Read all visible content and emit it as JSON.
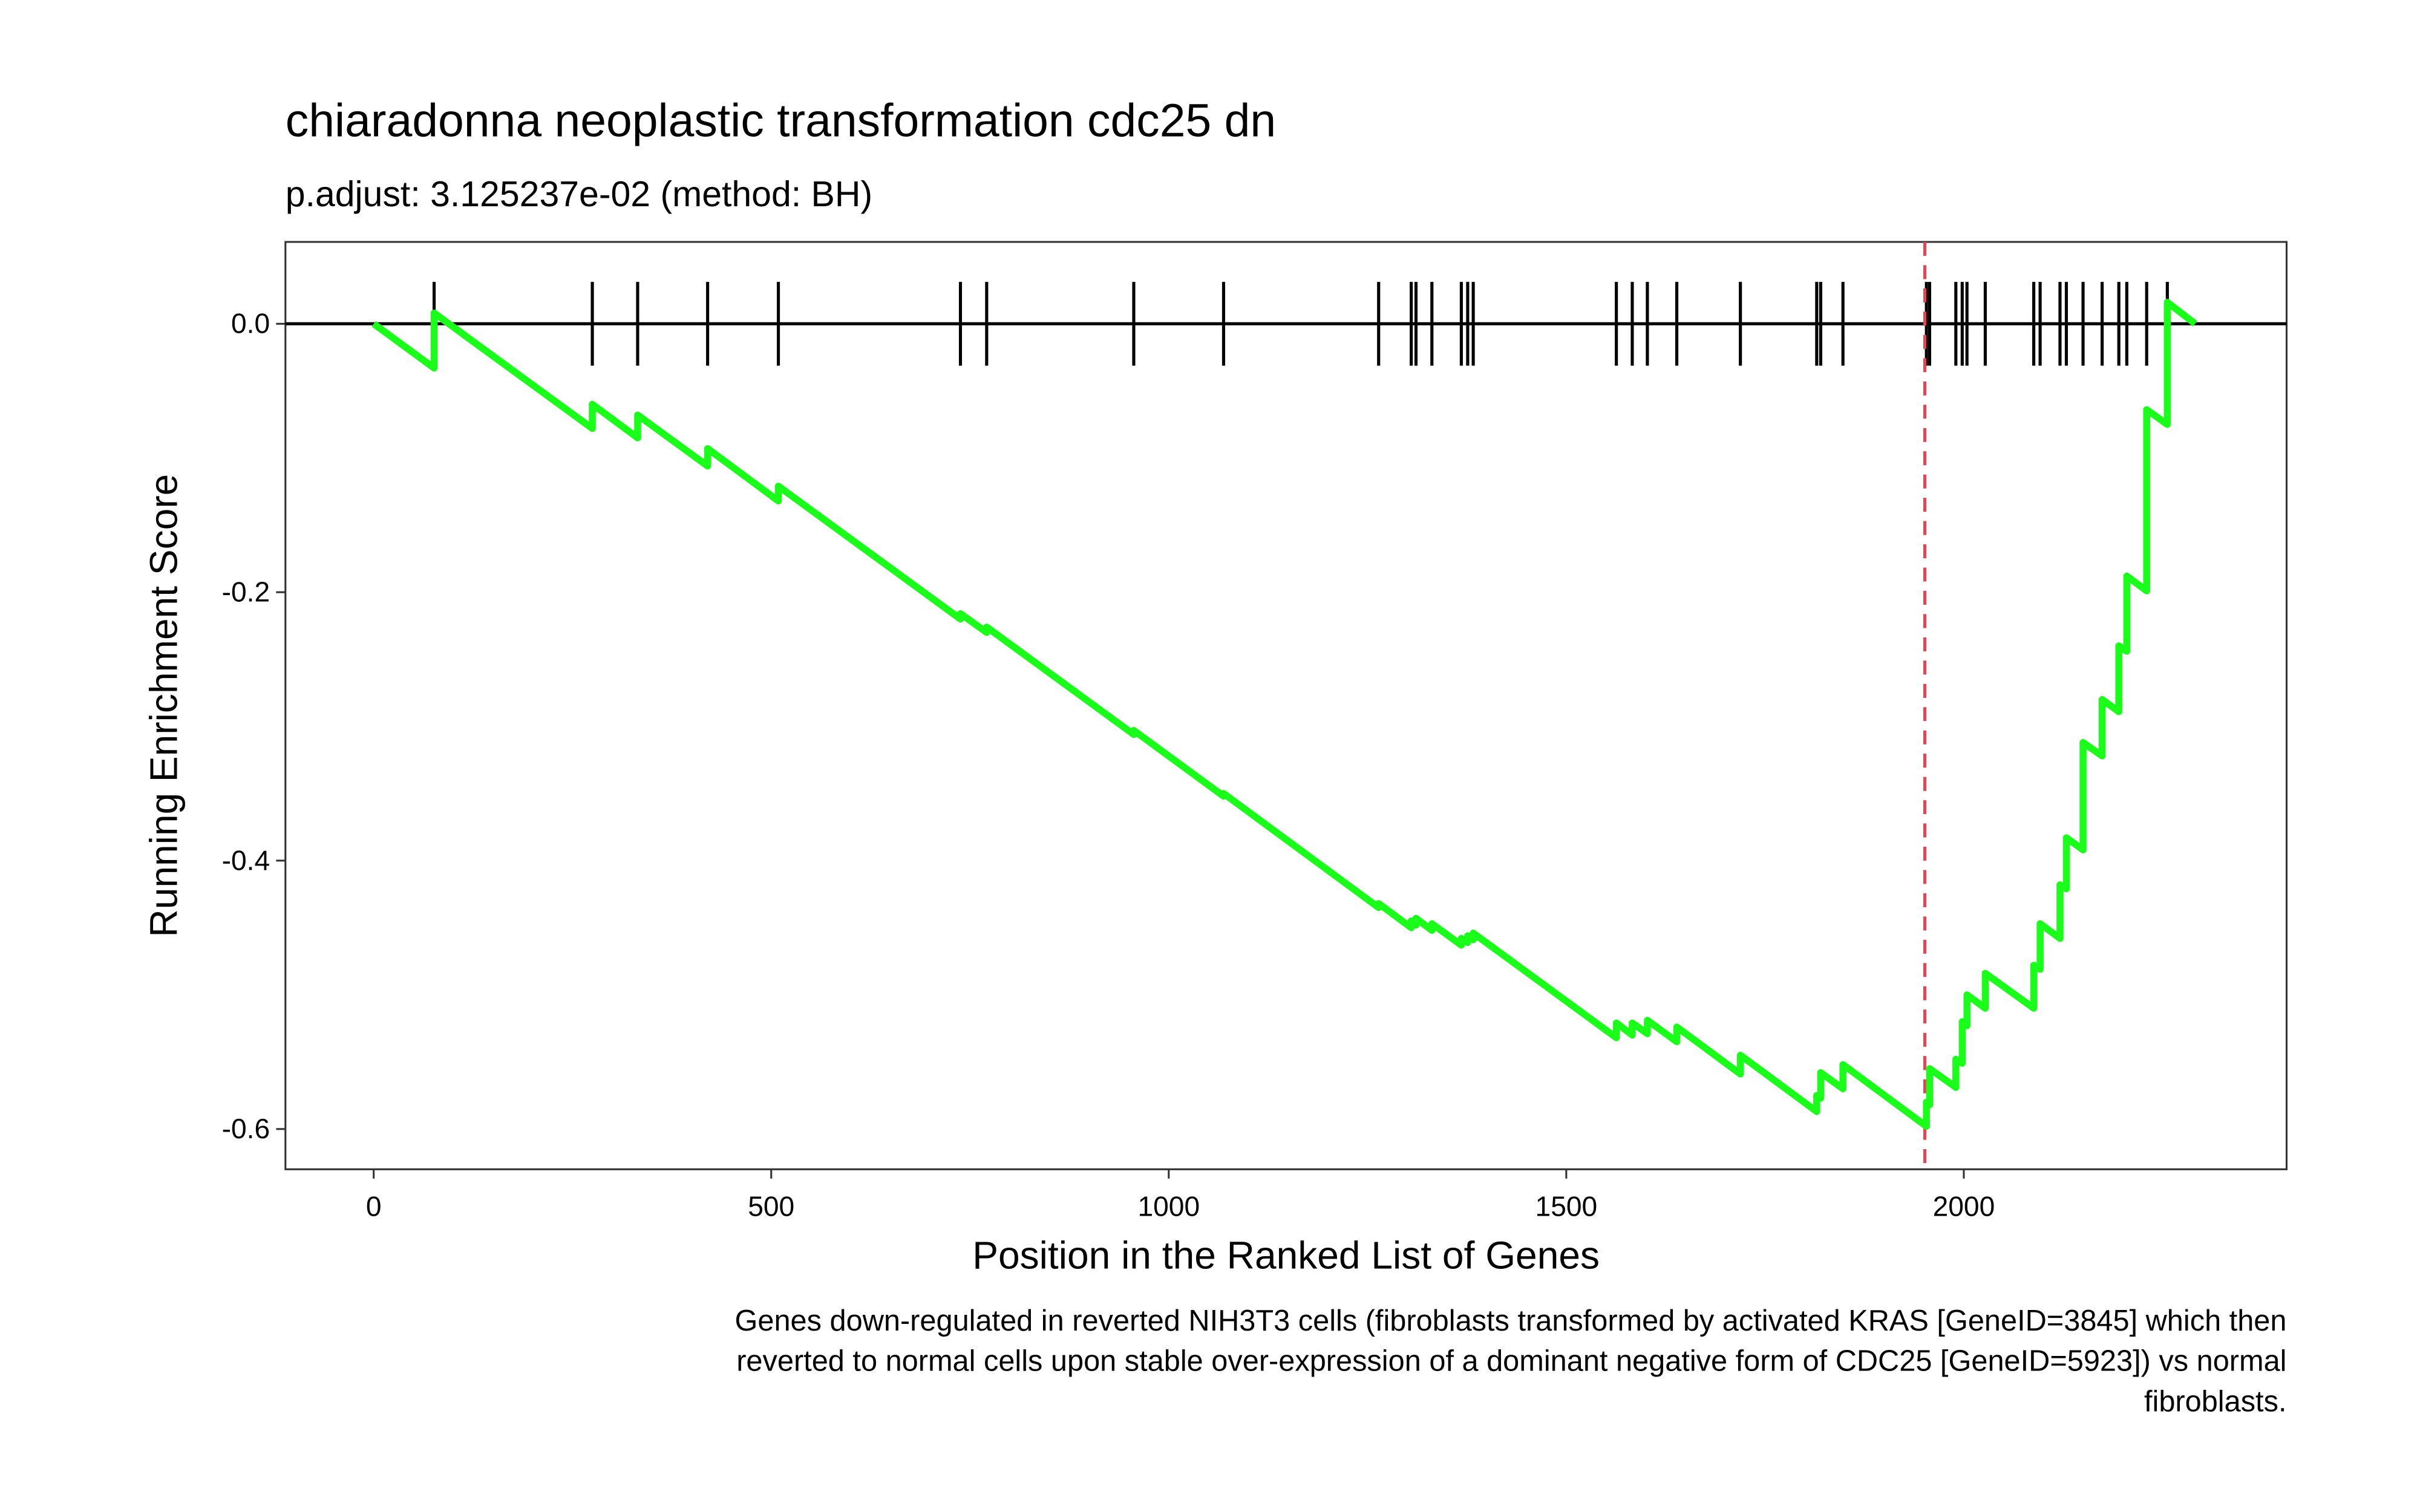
{
  "chart_data": {
    "type": "line",
    "title": "chiaradonna neoplastic transformation cdc25 dn",
    "subtitle": "p.adjust: 3.125237e-02 (method: BH)",
    "x_label": "Position in the Ranked List of Genes",
    "y_label": "Running Enrichment Score",
    "caption": [
      "Genes down-regulated in reverted NIH3T3 cells (fibroblasts transformed by activated KRAS [GeneID=3845] which then",
      "reverted to normal cells upon stable over-expression of a dominant negative form of CDC25 [GeneID=5923]) vs normal",
      "fibroblasts."
    ],
    "xlim": [
      -111,
      2406
    ],
    "ylim": [
      -0.63,
      0.061
    ],
    "xticks": [
      0,
      500,
      1000,
      1500,
      2000
    ],
    "yticks": [
      {
        "value": 0,
        "label": "0.0"
      },
      -0.2,
      -0.4,
      -0.6
    ],
    "color": "#1aff1a",
    "x": [
      0,
      76,
      76,
      275,
      275,
      332,
      332,
      420,
      420,
      509,
      509,
      738,
      738,
      771,
      771,
      956,
      956,
      1069,
      1069,
      1264,
      1264,
      1305,
      1305,
      1311,
      1311,
      1331,
      1331,
      1368,
      1368,
      1376,
      1376,
      1383,
      1383,
      1563,
      1563,
      1583,
      1583,
      1602,
      1602,
      1639,
      1639,
      1719,
      1719,
      1815,
      1815,
      1820,
      1820,
      1848,
      1848,
      1953,
      1953,
      1957,
      1957,
      1990,
      1990,
      1998,
      1998,
      2004,
      2004,
      2027,
      2027,
      2088,
      2088,
      2096,
      2096,
      2121,
      2121,
      2129,
      2129,
      2150,
      2150,
      2174,
      2174,
      2195,
      2195,
      2205,
      2205,
      2230,
      2230,
      2256,
      2256,
      2291
    ],
    "values": [
      0,
      -0.033,
      0.008,
      -0.078,
      -0.06,
      -0.085,
      -0.068,
      -0.106,
      -0.093,
      -0.132,
      -0.121,
      -0.22,
      -0.216,
      -0.23,
      -0.226,
      -0.306,
      -0.303,
      -0.352,
      -0.35,
      -0.435,
      -0.432,
      -0.45,
      -0.445,
      -0.448,
      -0.443,
      -0.452,
      -0.447,
      -0.463,
      -0.458,
      -0.461,
      -0.456,
      -0.459,
      -0.454,
      -0.532,
      -0.521,
      -0.53,
      -0.521,
      -0.529,
      -0.519,
      -0.535,
      -0.524,
      -0.559,
      -0.545,
      -0.587,
      -0.575,
      -0.577,
      -0.558,
      -0.57,
      -0.552,
      -0.598,
      -0.58,
      -0.582,
      -0.555,
      -0.569,
      -0.548,
      -0.551,
      -0.52,
      -0.523,
      -0.5,
      -0.51,
      -0.484,
      -0.51,
      -0.478,
      -0.481,
      -0.447,
      -0.458,
      -0.418,
      -0.421,
      -0.383,
      -0.392,
      -0.312,
      -0.322,
      -0.28,
      -0.289,
      -0.24,
      -0.244,
      -0.188,
      -0.199,
      -0.064,
      -0.075,
      0.016,
      0
    ],
    "hits": [
      76,
      275,
      332,
      420,
      509,
      738,
      771,
      956,
      1069,
      1264,
      1305,
      1311,
      1331,
      1368,
      1376,
      1383,
      1563,
      1583,
      1602,
      1639,
      1719,
      1815,
      1820,
      1848,
      1953,
      1957,
      1990,
      1998,
      2004,
      2027,
      2088,
      2096,
      2121,
      2129,
      2150,
      2174,
      2195,
      2205,
      2230,
      2256
    ],
    "hline": 0,
    "vline": 1951,
    "vline_color": "#e8434f"
  }
}
